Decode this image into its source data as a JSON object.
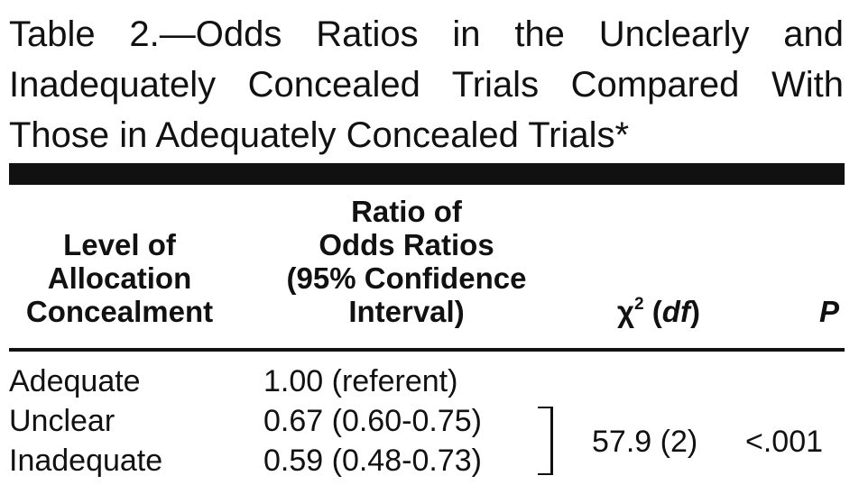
{
  "table": {
    "title": "Table 2.—Odds Ratios in the Unclearly and Inadequately Concealed Trials Compared With Those in Adequately Concealed Trials*",
    "headers": {
      "level": [
        "Level of",
        "Allocation",
        "Concealment"
      ],
      "ratio": [
        "Ratio of",
        "Odds Ratios",
        "(95% Confidence",
        "Interval)"
      ],
      "chi_symbol": "χ",
      "chi_sup": "2",
      "chi_df": "df",
      "p": "P"
    },
    "rows": [
      {
        "level": "Adequate",
        "ratio": "1.00 (referent)"
      },
      {
        "level": "Unclear",
        "ratio": "0.67 (0.60-0.75)"
      },
      {
        "level": "Inadequate",
        "ratio": "0.59 (0.48-0.73)"
      }
    ],
    "chi_value": "57.9 (2)",
    "p_value": "<.001"
  }
}
